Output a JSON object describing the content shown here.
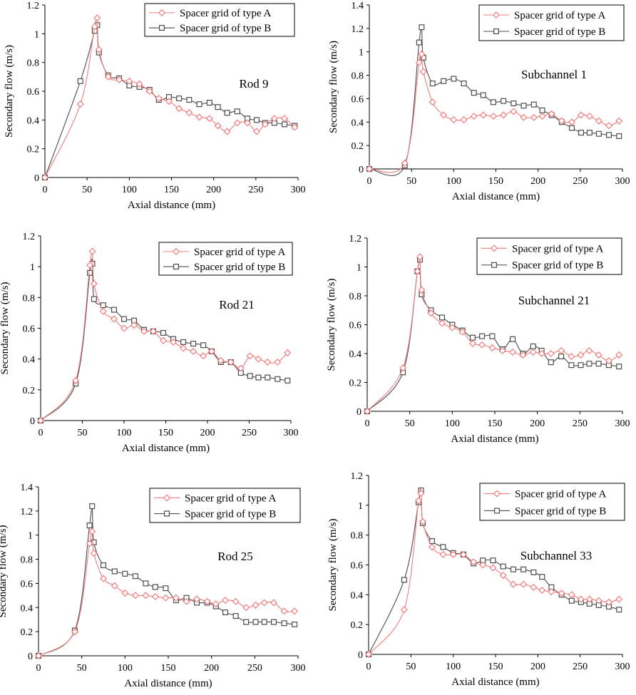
{
  "colors": {
    "series_a": "#f27d7d",
    "series_b": "#4d4d4d",
    "axis": "#000000"
  },
  "legend_labels": [
    "Spacer grid of type A",
    "Spacer grid of type B"
  ],
  "chart_data": [
    {
      "type": "line",
      "annotation": "Rod 9",
      "xlabel": "Axial distance (mm)",
      "ylabel": "Secondary flow (m/s)",
      "xlim": [
        0,
        300
      ],
      "ylim": [
        0,
        1.2
      ],
      "xticks": [
        0,
        50,
        100,
        150,
        200,
        250,
        300
      ],
      "yticks": [
        0,
        0.2,
        0.4,
        0.6,
        0.8,
        1,
        1.2
      ],
      "legend": "top-right",
      "series": [
        {
          "name": "Spacer grid of type A",
          "marker": "diamond",
          "x": [
            0,
            42,
            59,
            62,
            64,
            75,
            88,
            100,
            112,
            124,
            135,
            147,
            159,
            171,
            183,
            195,
            205,
            216,
            228,
            240,
            251,
            261,
            272,
            284,
            296
          ],
          "y": [
            0,
            0.51,
            1.05,
            1.11,
            0.89,
            0.7,
            0.68,
            0.67,
            0.65,
            0.6,
            0.55,
            0.53,
            0.48,
            0.45,
            0.42,
            0.41,
            0.36,
            0.32,
            0.38,
            0.38,
            0.32,
            0.37,
            0.41,
            0.41,
            0.35
          ]
        },
        {
          "name": "Spacer grid of type B",
          "marker": "square",
          "x": [
            0,
            42,
            59,
            62,
            64,
            75,
            88,
            100,
            112,
            124,
            135,
            147,
            159,
            171,
            183,
            195,
            205,
            216,
            228,
            240,
            251,
            261,
            272,
            284,
            296
          ],
          "y": [
            0,
            0.67,
            1.02,
            1.06,
            0.87,
            0.71,
            0.69,
            0.64,
            0.63,
            0.61,
            0.54,
            0.56,
            0.55,
            0.54,
            0.51,
            0.52,
            0.49,
            0.45,
            0.46,
            0.41,
            0.4,
            0.38,
            0.38,
            0.37,
            0.36
          ]
        }
      ]
    },
    {
      "type": "line",
      "annotation": "Subchannel 1",
      "xlabel": "Axial distance (mm)",
      "ylabel": "Secondary flow (m/s)",
      "xlim": [
        0,
        300
      ],
      "ylim": [
        0,
        1.4
      ],
      "xticks": [
        0,
        50,
        100,
        150,
        200,
        250,
        300
      ],
      "yticks": [
        0,
        0.2,
        0.4,
        0.6,
        0.8,
        1,
        1.2,
        1.4
      ],
      "legend": "top-right",
      "series": [
        {
          "name": "Spacer grid of type A",
          "marker": "diamond",
          "x": [
            0,
            42,
            59,
            62,
            64,
            75,
            88,
            100,
            112,
            124,
            135,
            147,
            159,
            171,
            183,
            195,
            205,
            216,
            228,
            240,
            251,
            261,
            272,
            284,
            296
          ],
          "y": [
            0,
            0.05,
            0.91,
            0.98,
            0.83,
            0.57,
            0.46,
            0.42,
            0.42,
            0.45,
            0.46,
            0.45,
            0.46,
            0.49,
            0.44,
            0.44,
            0.45,
            0.47,
            0.41,
            0.4,
            0.46,
            0.45,
            0.41,
            0.37,
            0.41
          ]
        },
        {
          "name": "Spacer grid of type B",
          "marker": "square",
          "x": [
            0,
            42,
            59,
            62,
            64,
            75,
            88,
            100,
            112,
            124,
            135,
            147,
            159,
            171,
            183,
            195,
            205,
            216,
            228,
            240,
            251,
            261,
            272,
            284,
            296
          ],
          "y": [
            0,
            0.03,
            1.08,
            1.21,
            0.95,
            0.73,
            0.75,
            0.77,
            0.73,
            0.65,
            0.63,
            0.57,
            0.58,
            0.56,
            0.54,
            0.55,
            0.5,
            0.46,
            0.4,
            0.35,
            0.31,
            0.31,
            0.3,
            0.29,
            0.28
          ]
        }
      ]
    },
    {
      "type": "line",
      "annotation": "Rod 21",
      "xlabel": "Axial distance (mm)",
      "ylabel": "Secondary flow (m/s)",
      "xlim": [
        0,
        300
      ],
      "ylim": [
        0,
        1.2
      ],
      "xticks": [
        0,
        50,
        100,
        150,
        200,
        250,
        300
      ],
      "yticks": [
        0,
        0.2,
        0.4,
        0.6,
        0.8,
        1,
        1.2
      ],
      "legend": "top-right",
      "series": [
        {
          "name": "Spacer grid of type A",
          "marker": "diamond",
          "x": [
            0,
            42,
            59,
            62,
            64,
            75,
            88,
            100,
            112,
            124,
            135,
            147,
            159,
            171,
            183,
            195,
            205,
            216,
            228,
            240,
            251,
            261,
            272,
            284,
            296
          ],
          "y": [
            0,
            0.26,
            1.01,
            1.1,
            0.89,
            0.71,
            0.66,
            0.6,
            0.62,
            0.58,
            0.58,
            0.52,
            0.51,
            0.47,
            0.45,
            0.42,
            0.45,
            0.39,
            0.38,
            0.34,
            0.42,
            0.4,
            0.38,
            0.38,
            0.44
          ]
        },
        {
          "name": "Spacer grid of type B",
          "marker": "square",
          "x": [
            0,
            42,
            59,
            62,
            64,
            75,
            88,
            100,
            112,
            124,
            135,
            147,
            159,
            171,
            183,
            195,
            205,
            216,
            228,
            240,
            251,
            261,
            272,
            284,
            296
          ],
          "y": [
            0,
            0.24,
            0.96,
            1.02,
            0.79,
            0.75,
            0.72,
            0.66,
            0.65,
            0.59,
            0.58,
            0.57,
            0.53,
            0.51,
            0.5,
            0.49,
            0.45,
            0.38,
            0.38,
            0.31,
            0.29,
            0.28,
            0.28,
            0.27,
            0.26
          ]
        }
      ]
    },
    {
      "type": "line",
      "annotation": "Subchannel 21",
      "xlabel": "Axial distance (mm)",
      "ylabel": "Secondary flow (m/s)",
      "xlim": [
        0,
        300
      ],
      "ylim": [
        0,
        1.2
      ],
      "xticks": [
        0,
        50,
        100,
        150,
        200,
        250,
        300
      ],
      "yticks": [
        0,
        0.2,
        0.4,
        0.6,
        0.8,
        1,
        1.2
      ],
      "legend": "top-right",
      "series": [
        {
          "name": "Spacer grid of type A",
          "marker": "diamond",
          "x": [
            0,
            42,
            59,
            62,
            64,
            75,
            88,
            100,
            112,
            124,
            135,
            147,
            159,
            171,
            183,
            195,
            205,
            216,
            228,
            240,
            251,
            261,
            272,
            284,
            296
          ],
          "y": [
            0,
            0.3,
            0.97,
            1.07,
            0.84,
            0.68,
            0.61,
            0.58,
            0.55,
            0.47,
            0.46,
            0.44,
            0.42,
            0.41,
            0.39,
            0.41,
            0.4,
            0.4,
            0.42,
            0.38,
            0.39,
            0.42,
            0.39,
            0.35,
            0.39
          ]
        },
        {
          "name": "Spacer grid of type B",
          "marker": "square",
          "x": [
            0,
            42,
            59,
            62,
            64,
            75,
            88,
            100,
            112,
            124,
            135,
            147,
            159,
            171,
            183,
            195,
            205,
            216,
            228,
            240,
            251,
            261,
            272,
            284,
            296
          ],
          "y": [
            0,
            0.27,
            0.97,
            1.05,
            0.81,
            0.7,
            0.65,
            0.6,
            0.56,
            0.51,
            0.52,
            0.52,
            0.43,
            0.5,
            0.4,
            0.45,
            0.42,
            0.34,
            0.38,
            0.32,
            0.32,
            0.33,
            0.33,
            0.32,
            0.31
          ]
        }
      ]
    },
    {
      "type": "line",
      "annotation": "Rod 25",
      "xlabel": "Axial distance (mm)",
      "ylabel": "Secondary flow (m/s)",
      "xlim": [
        0,
        300
      ],
      "ylim": [
        0,
        1.4
      ],
      "xticks": [
        0,
        50,
        100,
        150,
        200,
        250,
        300
      ],
      "yticks": [
        0,
        0.2,
        0.4,
        0.6,
        0.8,
        1,
        1.2,
        1.4
      ],
      "legend": "top-right",
      "series": [
        {
          "name": "Spacer grid of type A",
          "marker": "diamond",
          "x": [
            0,
            42,
            59,
            62,
            64,
            75,
            88,
            100,
            112,
            124,
            135,
            147,
            159,
            171,
            183,
            195,
            205,
            216,
            228,
            240,
            251,
            261,
            272,
            284,
            296
          ],
          "y": [
            0,
            0.2,
            0.93,
            1.03,
            0.85,
            0.64,
            0.58,
            0.52,
            0.5,
            0.5,
            0.49,
            0.48,
            0.48,
            0.45,
            0.47,
            0.45,
            0.43,
            0.46,
            0.45,
            0.4,
            0.42,
            0.44,
            0.44,
            0.37,
            0.37
          ]
        },
        {
          "name": "Spacer grid of type B",
          "marker": "square",
          "x": [
            0,
            42,
            59,
            62,
            64,
            75,
            88,
            100,
            112,
            124,
            135,
            147,
            159,
            171,
            183,
            195,
            205,
            216,
            228,
            240,
            251,
            261,
            272,
            284,
            296
          ],
          "y": [
            0,
            0.21,
            1.08,
            1.24,
            0.94,
            0.75,
            0.7,
            0.68,
            0.66,
            0.6,
            0.57,
            0.56,
            0.46,
            0.48,
            0.44,
            0.44,
            0.41,
            0.36,
            0.33,
            0.28,
            0.28,
            0.28,
            0.28,
            0.27,
            0.26
          ]
        }
      ]
    },
    {
      "type": "line",
      "annotation": "Subchannel 33",
      "xlabel": "Axial distance (mm)",
      "ylabel": "Secondary flow (m/s)",
      "xlim": [
        0,
        300
      ],
      "ylim": [
        0,
        1.2
      ],
      "xticks": [
        0,
        50,
        100,
        150,
        200,
        250,
        300
      ],
      "yticks": [
        0,
        0.2,
        0.4,
        0.6,
        0.8,
        1,
        1.2
      ],
      "legend": "top-right",
      "series": [
        {
          "name": "Spacer grid of type A",
          "marker": "diamond",
          "x": [
            0,
            42,
            59,
            62,
            64,
            75,
            88,
            100,
            112,
            124,
            135,
            147,
            159,
            171,
            183,
            195,
            205,
            216,
            228,
            240,
            251,
            261,
            272,
            284,
            296
          ],
          "y": [
            0,
            0.3,
            1.03,
            1.08,
            0.89,
            0.72,
            0.67,
            0.67,
            0.67,
            0.62,
            0.6,
            0.58,
            0.53,
            0.47,
            0.47,
            0.45,
            0.43,
            0.42,
            0.41,
            0.4,
            0.37,
            0.37,
            0.36,
            0.35,
            0.37
          ]
        },
        {
          "name": "Spacer grid of type B",
          "marker": "square",
          "x": [
            0,
            42,
            59,
            62,
            64,
            75,
            88,
            100,
            112,
            124,
            135,
            147,
            159,
            171,
            183,
            195,
            205,
            216,
            228,
            240,
            251,
            261,
            272,
            284,
            296
          ],
          "y": [
            0,
            0.5,
            1.02,
            1.1,
            0.88,
            0.76,
            0.72,
            0.68,
            0.67,
            0.61,
            0.63,
            0.63,
            0.59,
            0.57,
            0.57,
            0.55,
            0.52,
            0.45,
            0.4,
            0.36,
            0.35,
            0.34,
            0.33,
            0.32,
            0.3
          ]
        }
      ]
    }
  ]
}
